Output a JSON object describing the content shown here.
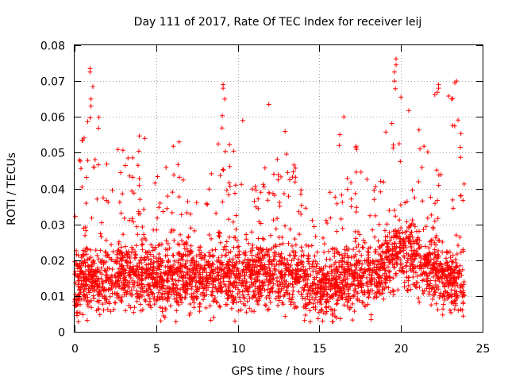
{
  "chart_data": {
    "type": "scatter",
    "title": "Day 111 of 2017, Rate Of TEC Index for receiver leij",
    "xlabel": "GPS time / hours",
    "ylabel": "ROTI / TECUs",
    "xlim": [
      0,
      25
    ],
    "ylim": [
      0,
      0.08
    ],
    "x_ticks": [
      "0",
      "5",
      "10",
      "15",
      "20",
      "25"
    ],
    "x_tick_values": [
      0,
      5,
      10,
      15,
      20,
      25
    ],
    "y_ticks": [
      "0",
      "0.01",
      "0.02",
      "0.03",
      "0.04",
      "0.05",
      "0.06",
      "0.07",
      "0.08"
    ],
    "y_tick_values": [
      0,
      0.01,
      0.02,
      0.03,
      0.04,
      0.05,
      0.06,
      0.07,
      0.08
    ],
    "grid": true,
    "marker": "+",
    "color": "#ff0000",
    "series": [
      {
        "name": "ROTI",
        "x_range": [
          0,
          23.9
        ],
        "envelope": {
          "hours": [
            0,
            1,
            2,
            3,
            4,
            5,
            6,
            7,
            8,
            9,
            10,
            11,
            12,
            13,
            14,
            14.5,
            15,
            16,
            17,
            18,
            19,
            19.5,
            20,
            21,
            22,
            23,
            23.9
          ],
          "median": [
            0.013,
            0.015,
            0.014,
            0.016,
            0.016,
            0.014,
            0.014,
            0.015,
            0.014,
            0.016,
            0.015,
            0.016,
            0.016,
            0.016,
            0.014,
            0.012,
            0.011,
            0.014,
            0.015,
            0.015,
            0.018,
            0.02,
            0.022,
            0.02,
            0.017,
            0.015,
            0.013
          ],
          "peak": [
            0.038,
            0.073,
            0.05,
            0.053,
            0.055,
            0.045,
            0.053,
            0.04,
            0.038,
            0.069,
            0.059,
            0.045,
            0.048,
            0.063,
            0.038,
            0.036,
            0.02,
            0.06,
            0.055,
            0.045,
            0.055,
            0.076,
            0.065,
            0.06,
            0.069,
            0.07,
            0.052
          ]
        },
        "notable_points": [
          {
            "x": 0.95,
            "y": 0.0735
          },
          {
            "x": 0.95,
            "y": 0.0725
          },
          {
            "x": 1.0,
            "y": 0.065
          },
          {
            "x": 1.0,
            "y": 0.063
          },
          {
            "x": 9.1,
            "y": 0.069
          },
          {
            "x": 9.1,
            "y": 0.068
          },
          {
            "x": 9.2,
            "y": 0.065
          },
          {
            "x": 10.3,
            "y": 0.059
          },
          {
            "x": 11.9,
            "y": 0.0635
          },
          {
            "x": 19.7,
            "y": 0.0762
          },
          {
            "x": 19.7,
            "y": 0.0745
          },
          {
            "x": 19.6,
            "y": 0.0725
          },
          {
            "x": 19.6,
            "y": 0.07
          },
          {
            "x": 20.0,
            "y": 0.0655
          },
          {
            "x": 22.3,
            "y": 0.069
          },
          {
            "x": 22.3,
            "y": 0.068
          },
          {
            "x": 23.4,
            "y": 0.07
          },
          {
            "x": 23.3,
            "y": 0.0695
          },
          {
            "x": 23.1,
            "y": 0.065
          },
          {
            "x": 6.4,
            "y": 0.053
          },
          {
            "x": 4.3,
            "y": 0.054
          },
          {
            "x": 16.5,
            "y": 0.06
          },
          {
            "x": 15.2,
            "y": 0.003
          }
        ]
      }
    ]
  }
}
